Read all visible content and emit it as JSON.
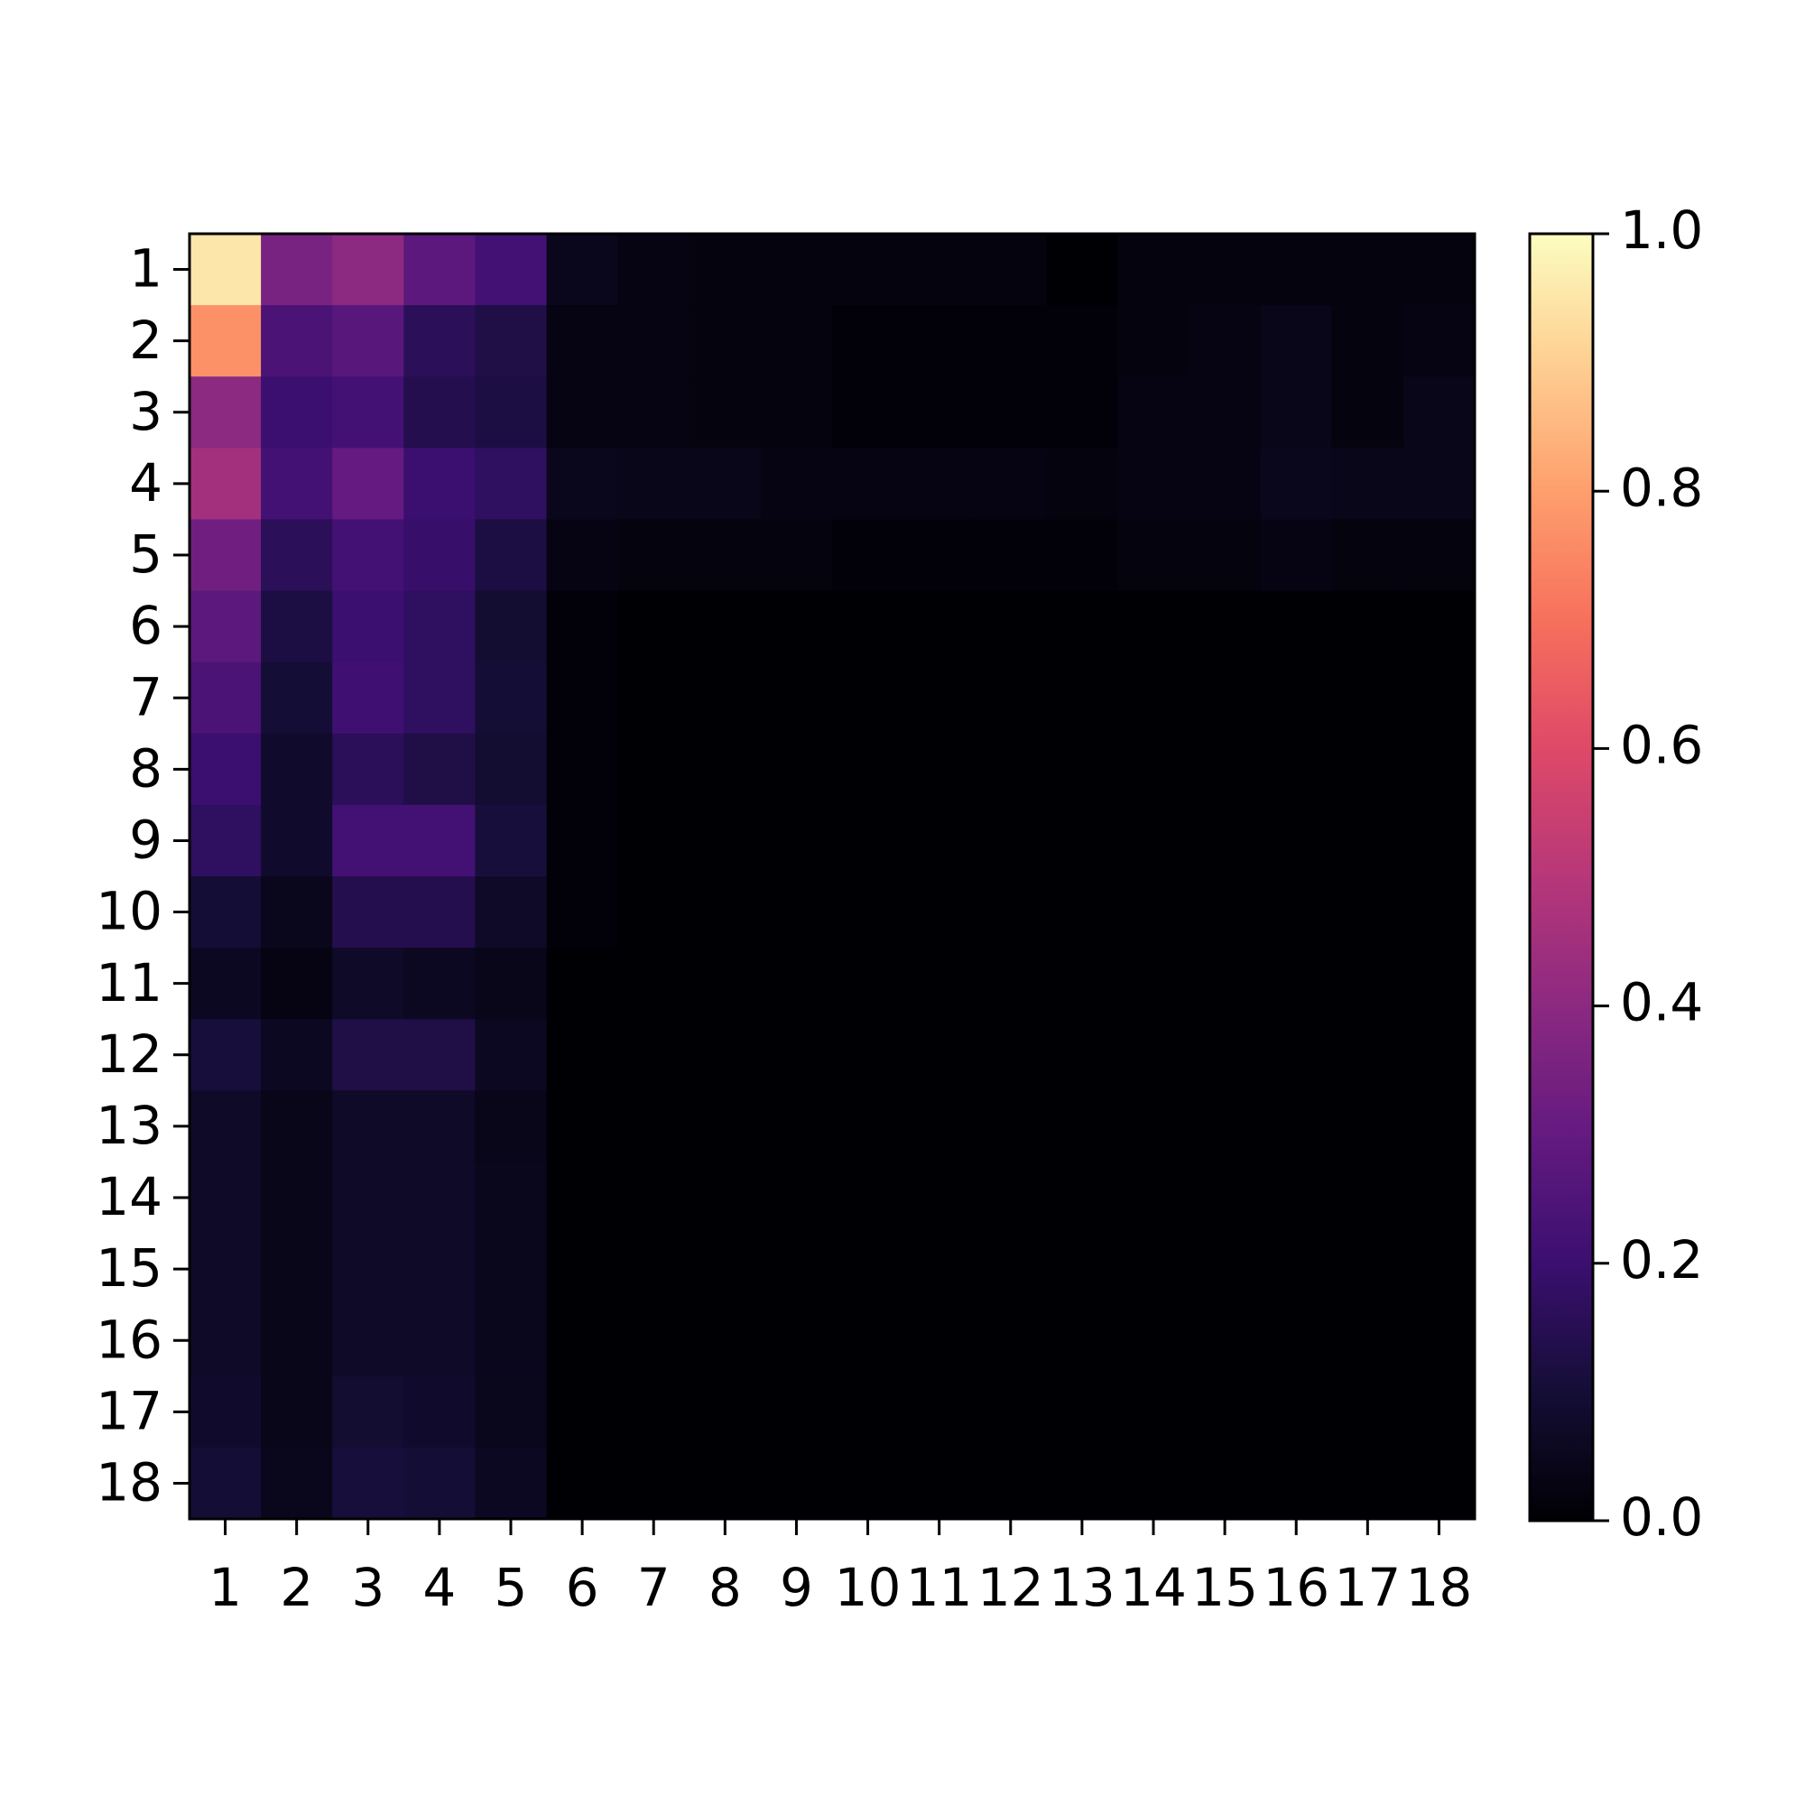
{
  "chart_data": {
    "type": "heatmap",
    "colormap": "magma",
    "x_categories": [
      "1",
      "2",
      "3",
      "4",
      "5",
      "6",
      "7",
      "8",
      "9",
      "10",
      "11",
      "12",
      "13",
      "14",
      "15",
      "16",
      "17",
      "18"
    ],
    "y_categories": [
      "1",
      "2",
      "3",
      "4",
      "5",
      "6",
      "7",
      "8",
      "9",
      "10",
      "11",
      "12",
      "13",
      "14",
      "15",
      "16",
      "17",
      "18"
    ],
    "values": [
      [
        0.95,
        0.35,
        0.4,
        0.28,
        0.22,
        0.05,
        0.03,
        0.02,
        0.02,
        0.02,
        0.02,
        0.02,
        0.0,
        0.02,
        0.02,
        0.02,
        0.02,
        0.02
      ],
      [
        0.77,
        0.24,
        0.27,
        0.16,
        0.13,
        0.03,
        0.03,
        0.02,
        0.02,
        0.01,
        0.01,
        0.01,
        0.01,
        0.02,
        0.03,
        0.04,
        0.02,
        0.03
      ],
      [
        0.4,
        0.2,
        0.22,
        0.14,
        0.12,
        0.03,
        0.03,
        0.02,
        0.02,
        0.01,
        0.01,
        0.01,
        0.01,
        0.03,
        0.03,
        0.04,
        0.02,
        0.04
      ],
      [
        0.45,
        0.22,
        0.3,
        0.2,
        0.17,
        0.05,
        0.04,
        0.04,
        0.03,
        0.03,
        0.03,
        0.03,
        0.02,
        0.03,
        0.03,
        0.05,
        0.04,
        0.04
      ],
      [
        0.33,
        0.16,
        0.22,
        0.19,
        0.12,
        0.03,
        0.02,
        0.02,
        0.02,
        0.01,
        0.01,
        0.01,
        0.01,
        0.02,
        0.02,
        0.03,
        0.02,
        0.02
      ],
      [
        0.28,
        0.12,
        0.2,
        0.17,
        0.09,
        0.01,
        0,
        0,
        0,
        0,
        0,
        0,
        0,
        0,
        0,
        0,
        0,
        0
      ],
      [
        0.24,
        0.1,
        0.21,
        0.17,
        0.1,
        0.01,
        0,
        0,
        0,
        0,
        0,
        0,
        0,
        0,
        0,
        0,
        0,
        0
      ],
      [
        0.2,
        0.08,
        0.16,
        0.13,
        0.09,
        0.01,
        0,
        0,
        0,
        0,
        0,
        0,
        0,
        0,
        0,
        0,
        0,
        0
      ],
      [
        0.17,
        0.08,
        0.22,
        0.22,
        0.11,
        0.01,
        0,
        0,
        0,
        0,
        0,
        0,
        0,
        0,
        0,
        0,
        0,
        0
      ],
      [
        0.1,
        0.05,
        0.14,
        0.14,
        0.07,
        0.01,
        0,
        0,
        0,
        0,
        0,
        0,
        0,
        0,
        0,
        0,
        0,
        0
      ],
      [
        0.06,
        0.03,
        0.07,
        0.06,
        0.04,
        0,
        0,
        0,
        0,
        0,
        0,
        0,
        0,
        0,
        0,
        0,
        0,
        0
      ],
      [
        0.11,
        0.06,
        0.13,
        0.13,
        0.06,
        0,
        0,
        0,
        0,
        0,
        0,
        0,
        0,
        0,
        0,
        0,
        0,
        0
      ],
      [
        0.07,
        0.04,
        0.07,
        0.07,
        0.04,
        0,
        0,
        0,
        0,
        0,
        0,
        0,
        0,
        0,
        0,
        0,
        0,
        0
      ],
      [
        0.07,
        0.04,
        0.07,
        0.07,
        0.05,
        0,
        0,
        0,
        0,
        0,
        0,
        0,
        0,
        0,
        0,
        0,
        0,
        0
      ],
      [
        0.07,
        0.04,
        0.07,
        0.07,
        0.05,
        0,
        0,
        0,
        0,
        0,
        0,
        0,
        0,
        0,
        0,
        0,
        0,
        0
      ],
      [
        0.07,
        0.04,
        0.07,
        0.07,
        0.05,
        0,
        0,
        0,
        0,
        0,
        0,
        0,
        0,
        0,
        0,
        0,
        0,
        0
      ],
      [
        0.08,
        0.04,
        0.09,
        0.08,
        0.05,
        0,
        0,
        0,
        0,
        0,
        0,
        0,
        0,
        0,
        0,
        0,
        0,
        0
      ],
      [
        0.1,
        0.05,
        0.11,
        0.1,
        0.06,
        0,
        0,
        0,
        0,
        0,
        0,
        0,
        0,
        0,
        0,
        0,
        0,
        0
      ]
    ],
    "zlim": [
      0,
      1
    ],
    "zticks": [
      {
        "value": 0,
        "label": "0.0"
      },
      0.2,
      0.4,
      0.6,
      0.8,
      {
        "value": 1,
        "label": "1.0"
      }
    ]
  }
}
